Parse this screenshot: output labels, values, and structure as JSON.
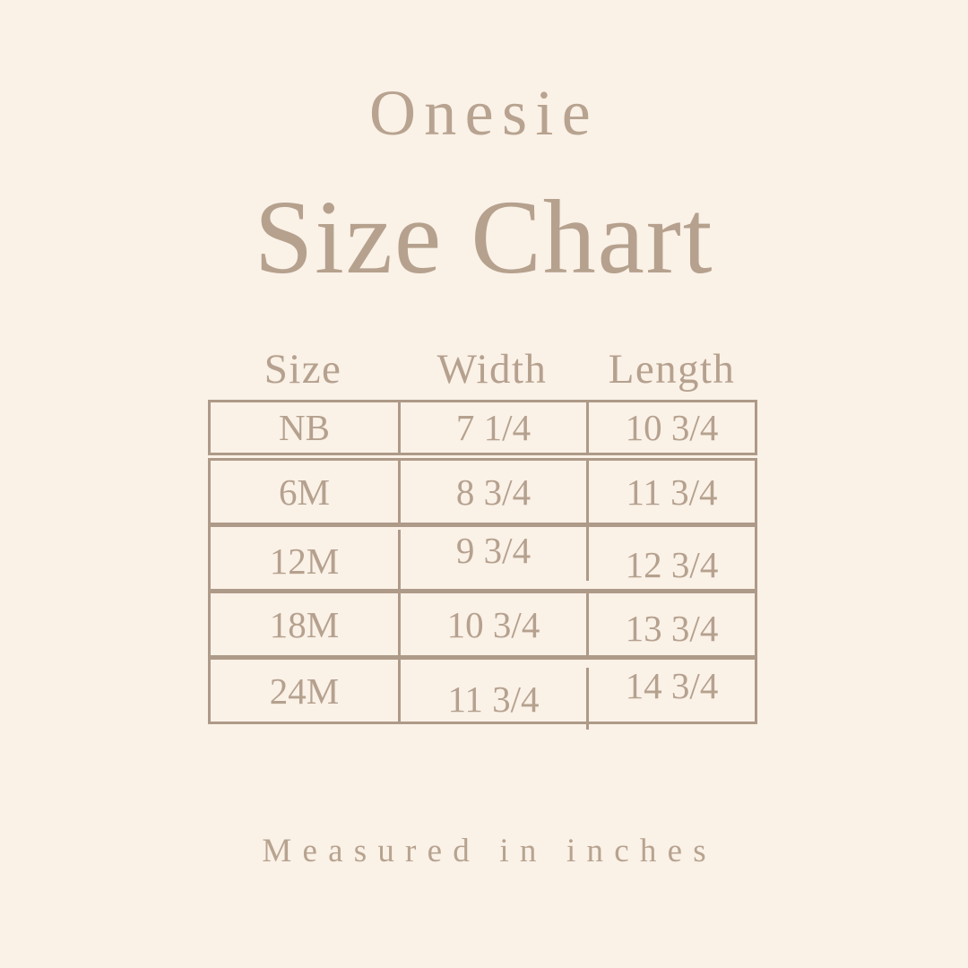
{
  "title": {
    "line1": "Onesie",
    "line2": "Size Chart"
  },
  "table": {
    "headers": {
      "size": "Size",
      "width": "Width",
      "length": "Length"
    },
    "rows": [
      {
        "size": "NB",
        "width": "7 1/4",
        "length": "10 3/4"
      },
      {
        "size": "6M",
        "width": "8 3/4",
        "length": "11 3/4"
      },
      {
        "size": "12M",
        "width": "9 3/4",
        "length": "12 3/4"
      },
      {
        "size": "18M",
        "width": "10 3/4",
        "length": "13 3/4"
      },
      {
        "size": "24M",
        "width": "11 3/4",
        "length": "14 3/4"
      }
    ]
  },
  "footer": {
    "note": "Measured in inches"
  },
  "colors": {
    "background": "#faf1e7",
    "text": "#b5a18e",
    "border": "#ae9a88"
  },
  "chart_data": {
    "type": "table",
    "title": "Onesie Size Chart",
    "columns": [
      "Size",
      "Width",
      "Length"
    ],
    "rows": [
      [
        "NB",
        "7 1/4",
        "10 3/4"
      ],
      [
        "6M",
        "8 3/4",
        "11 3/4"
      ],
      [
        "12M",
        "9 3/4",
        "12 3/4"
      ],
      [
        "18M",
        "10 3/4",
        "13 3/4"
      ],
      [
        "24M",
        "11 3/4",
        "14 3/4"
      ]
    ],
    "units": "inches",
    "note": "Measured in inches"
  }
}
